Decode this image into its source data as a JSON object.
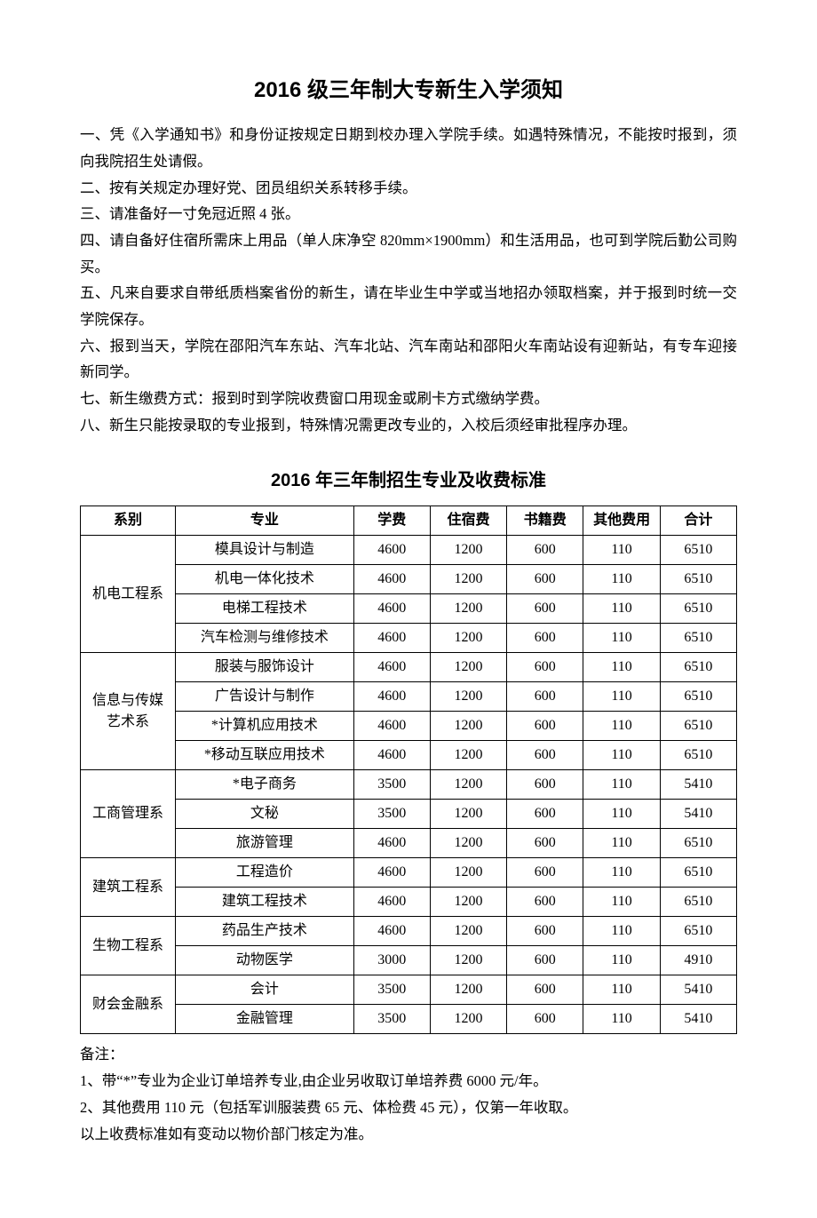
{
  "title": "2016 级三年制大专新生入学须知",
  "paragraphs": [
    "一、凭《入学通知书》和身份证按规定日期到校办理入学院手续。如遇特殊情况，不能按时报到，须向我院招生处请假。",
    "二、按有关规定办理好党、团员组织关系转移手续。",
    "三、请准备好一寸免冠近照 4 张。",
    "四、请自备好住宿所需床上用品（单人床净空 820mm×1900mm）和生活用品，也可到学院后勤公司购买。",
    "五、凡来自要求自带纸质档案省份的新生，请在毕业生中学或当地招办领取档案，并于报到时统一交学院保存。",
    "六、报到当天，学院在邵阳汽车东站、汽车北站、汽车南站和邵阳火车南站设有迎新站，有专车迎接新同学。",
    "七、新生缴费方式：报到时到学院收费窗口用现金或刷卡方式缴纳学费。",
    "八、新生只能按录取的专业报到，特殊情况需更改专业的，入校后须经审批程序办理。"
  ],
  "sub_title": "2016 年三年制招生专业及收费标准",
  "table": {
    "columns": [
      "系别",
      "专业",
      "学费",
      "住宿费",
      "书籍费",
      "其他费用",
      "合计"
    ],
    "departments": [
      {
        "name": "机电工程系",
        "rowspan": 4,
        "majors": [
          {
            "name": "模具设计与制造",
            "tuition": 4600,
            "dorm": 1200,
            "books": 600,
            "other": 110,
            "total": 6510
          },
          {
            "name": "机电一体化技术",
            "tuition": 4600,
            "dorm": 1200,
            "books": 600,
            "other": 110,
            "total": 6510
          },
          {
            "name": "电梯工程技术",
            "tuition": 4600,
            "dorm": 1200,
            "books": 600,
            "other": 110,
            "total": 6510
          },
          {
            "name": "汽车检测与维修技术",
            "tuition": 4600,
            "dorm": 1200,
            "books": 600,
            "other": 110,
            "total": 6510
          }
        ]
      },
      {
        "name": "信息与传媒艺术系",
        "rowspan": 4,
        "majors": [
          {
            "name": "服装与服饰设计",
            "tuition": 4600,
            "dorm": 1200,
            "books": 600,
            "other": 110,
            "total": 6510
          },
          {
            "name": "广告设计与制作",
            "tuition": 4600,
            "dorm": 1200,
            "books": 600,
            "other": 110,
            "total": 6510
          },
          {
            "name": "*计算机应用技术",
            "tuition": 4600,
            "dorm": 1200,
            "books": 600,
            "other": 110,
            "total": 6510
          },
          {
            "name": "*移动互联应用技术",
            "tuition": 4600,
            "dorm": 1200,
            "books": 600,
            "other": 110,
            "total": 6510
          }
        ]
      },
      {
        "name": "工商管理系",
        "rowspan": 3,
        "majors": [
          {
            "name": "*电子商务",
            "tuition": 3500,
            "dorm": 1200,
            "books": 600,
            "other": 110,
            "total": 5410
          },
          {
            "name": "文秘",
            "tuition": 3500,
            "dorm": 1200,
            "books": 600,
            "other": 110,
            "total": 5410
          },
          {
            "name": "旅游管理",
            "tuition": 4600,
            "dorm": 1200,
            "books": 600,
            "other": 110,
            "total": 6510
          }
        ]
      },
      {
        "name": "建筑工程系",
        "rowspan": 2,
        "majors": [
          {
            "name": "工程造价",
            "tuition": 4600,
            "dorm": 1200,
            "books": 600,
            "other": 110,
            "total": 6510
          },
          {
            "name": "建筑工程技术",
            "tuition": 4600,
            "dorm": 1200,
            "books": 600,
            "other": 110,
            "total": 6510
          }
        ]
      },
      {
        "name": "生物工程系",
        "rowspan": 2,
        "majors": [
          {
            "name": "药品生产技术",
            "tuition": 4600,
            "dorm": 1200,
            "books": 600,
            "other": 110,
            "total": 6510
          },
          {
            "name": "动物医学",
            "tuition": 3000,
            "dorm": 1200,
            "books": 600,
            "other": 110,
            "total": 4910
          }
        ]
      },
      {
        "name": "财会金融系",
        "rowspan": 2,
        "majors": [
          {
            "name": "会计",
            "tuition": 3500,
            "dorm": 1200,
            "books": 600,
            "other": 110,
            "total": 5410
          },
          {
            "name": "金融管理",
            "tuition": 3500,
            "dorm": 1200,
            "books": 600,
            "other": 110,
            "total": 5410
          }
        ]
      }
    ]
  },
  "notes": [
    "备注：",
    "1、带“*”专业为企业订单培养专业,由企业另收取订单培养费 6000 元/年。",
    "2、其他费用 110 元（包括军训服装费 65 元、体检费 45 元），仅第一年收取。",
    "以上收费标准如有变动以物价部门核定为准。"
  ]
}
